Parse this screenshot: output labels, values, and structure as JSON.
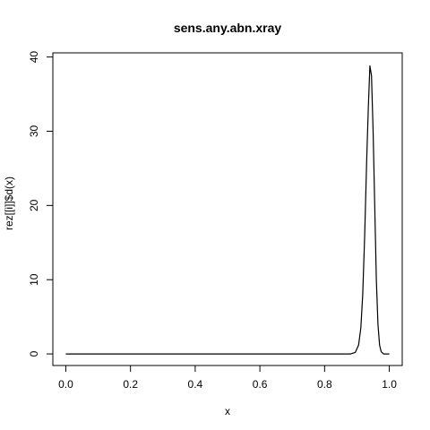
{
  "chart_data": {
    "type": "line",
    "title": "sens.any.abn.xray",
    "xlabel": "x",
    "ylabel": "rez[[i]]$d(x)",
    "xlim": [
      -0.04,
      1.04
    ],
    "ylim": [
      -1.56,
      40.56
    ],
    "xticks": [
      0.0,
      0.2,
      0.4,
      0.6,
      0.8,
      1.0
    ],
    "xtick_labels": [
      "0.0",
      "0.2",
      "0.4",
      "0.6",
      "0.8",
      "1.0"
    ],
    "yticks": [
      0,
      10,
      20,
      30,
      40
    ],
    "ytick_labels": [
      "0",
      "10",
      "20",
      "30",
      "40"
    ],
    "grid": false,
    "series": [
      {
        "color": "#000000",
        "x": [
          0.0,
          0.5,
          0.88,
          0.895,
          0.905,
          0.912,
          0.918,
          0.924,
          0.93,
          0.935,
          0.94,
          0.945,
          0.95,
          0.955,
          0.96,
          0.965,
          0.97,
          0.975,
          0.982,
          1.0
        ],
        "y": [
          0,
          0,
          0,
          0.2,
          1.2,
          3.5,
          8.0,
          16.0,
          26.0,
          33.0,
          38.8,
          37.5,
          30.0,
          20.0,
          10.0,
          4.0,
          1.2,
          0.3,
          0.0,
          0.0
        ]
      }
    ]
  }
}
